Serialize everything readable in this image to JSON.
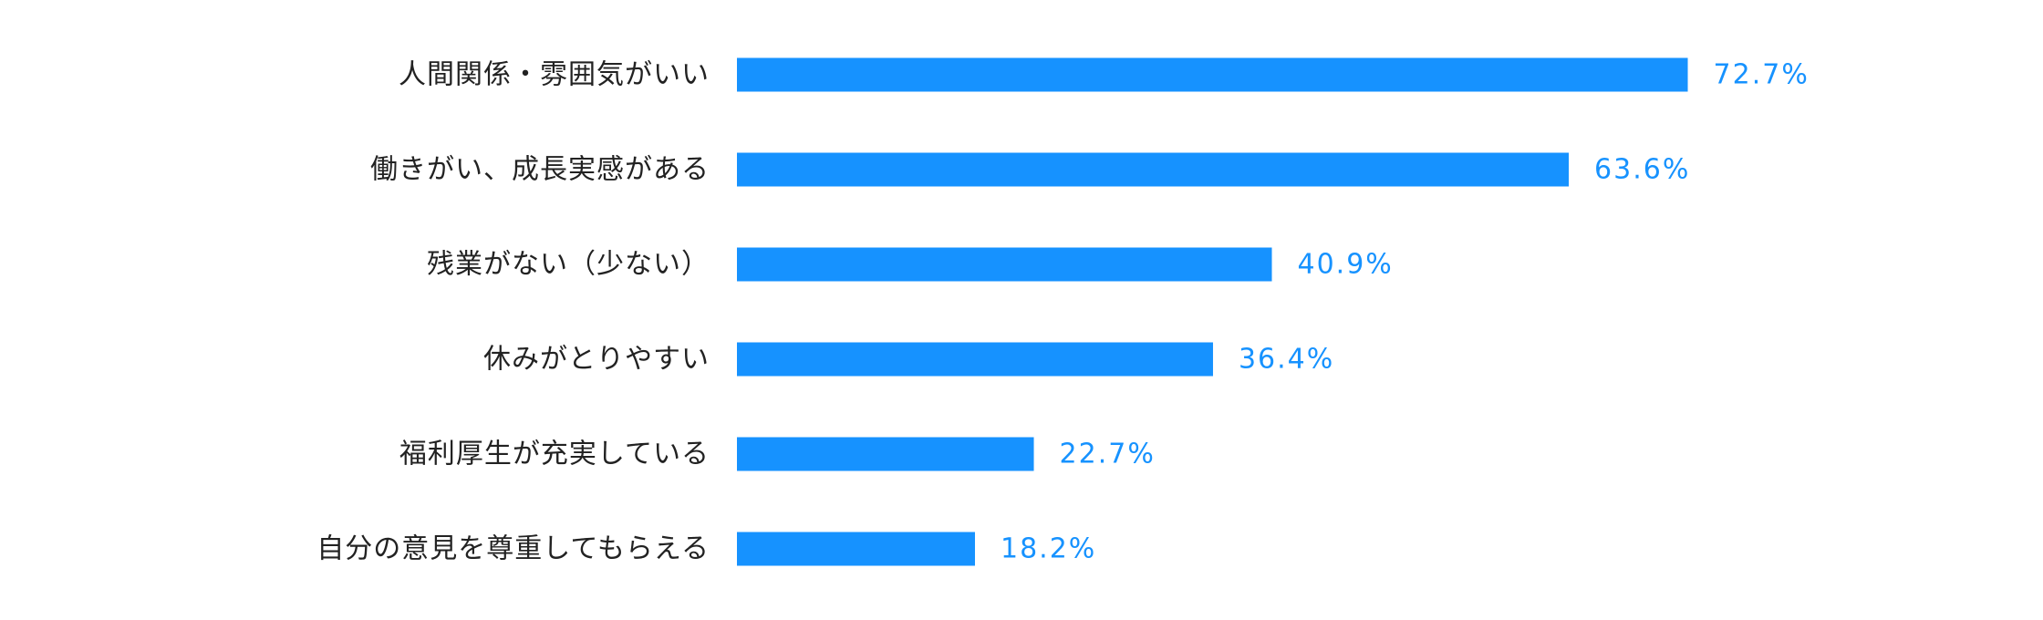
{
  "chart_data": {
    "type": "bar",
    "orientation": "horizontal",
    "categories": [
      "人間関係・雰囲気がいい",
      "働きがい、成長実感がある",
      "残業がない（少ない）",
      "休みがとりやすい",
      "福利厚生が充実している",
      "自分の意見を尊重してもらえる"
    ],
    "values": [
      72.7,
      63.6,
      40.9,
      36.4,
      22.7,
      18.2
    ],
    "value_labels": [
      "72.7%",
      "63.6%",
      "40.9%",
      "36.4%",
      "22.7%",
      "18.2%"
    ],
    "unit": "%",
    "xlim": [
      0,
      100
    ],
    "grid": false,
    "legend": "none",
    "colors": {
      "bar": "#1692ff",
      "value_text": "#1692ff",
      "label_text": "#222222"
    }
  }
}
